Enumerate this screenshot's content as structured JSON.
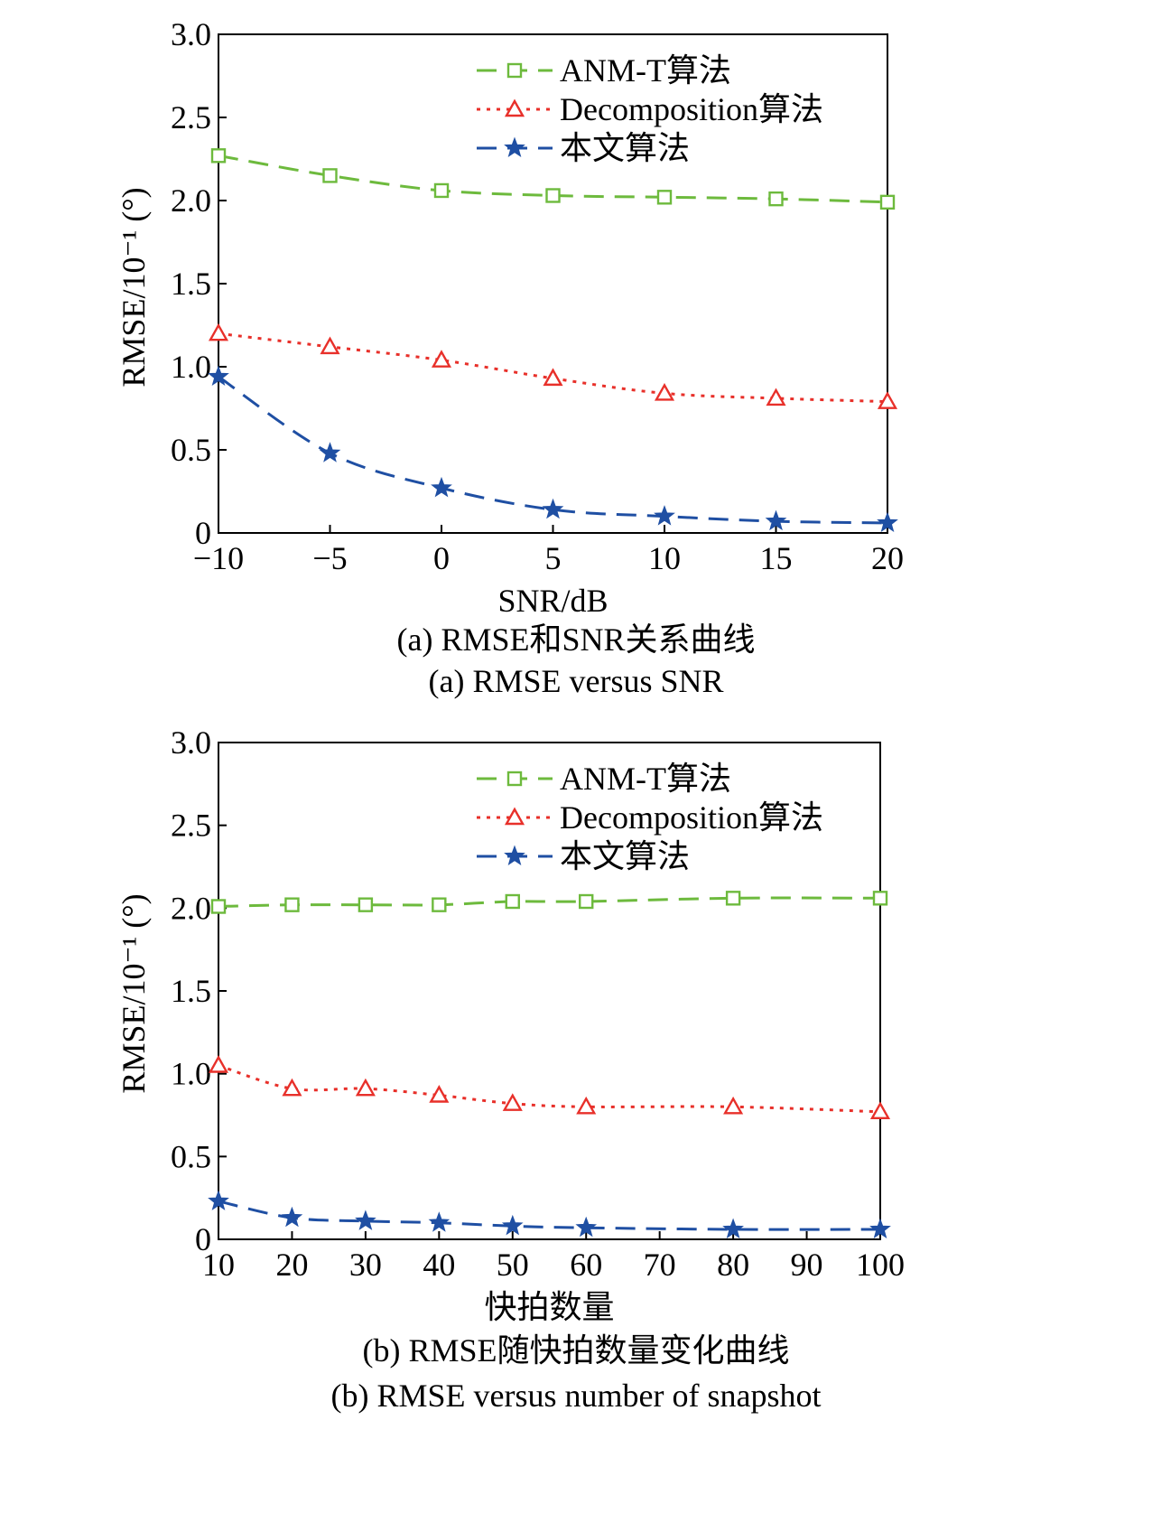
{
  "chart_data": [
    {
      "type": "line",
      "xlabel": "SNR/dB",
      "ylabel": "RMSE/10⁻¹ (°)",
      "caption_cn": "(a) RMSE和SNR关系曲线",
      "caption_en": "(a) RMSE versus SNR",
      "x": [
        -10,
        -5,
        0,
        5,
        10,
        15,
        20
      ],
      "xticks": [
        "−10",
        "−5",
        "0",
        "5",
        "10",
        "15",
        "20"
      ],
      "xlim": [
        -10,
        20
      ],
      "ylim": [
        0,
        3.0
      ],
      "yticks": [
        "0",
        "0.5",
        "1.0",
        "1.5",
        "2.0",
        "2.5",
        "3.0"
      ],
      "legend_position": "top-right",
      "grid": false,
      "series": [
        {
          "name": "ANM-T算法",
          "color": "#6dba3d",
          "marker": "square",
          "style": "dashed",
          "values": [
            2.27,
            2.15,
            2.06,
            2.03,
            2.02,
            2.01,
            1.99
          ]
        },
        {
          "name": "Decomposition算法",
          "color": "#e8302a",
          "marker": "triangle",
          "style": "dotted",
          "values": [
            1.2,
            1.12,
            1.04,
            0.93,
            0.84,
            0.81,
            0.79
          ]
        },
        {
          "name": "本文算法",
          "color": "#1f4fa3",
          "marker": "star",
          "style": "dashed",
          "values": [
            0.94,
            0.48,
            0.27,
            0.14,
            0.1,
            0.07,
            0.06
          ]
        }
      ]
    },
    {
      "type": "line",
      "xlabel": "快拍数量",
      "ylabel": "RMSE/10⁻¹ (°)",
      "caption_cn": "(b) RMSE随快拍数量变化曲线",
      "caption_en": "(b) RMSE versus number of snapshot",
      "x": [
        10,
        20,
        30,
        40,
        50,
        60,
        80,
        100
      ],
      "xticks": [
        "10",
        "20",
        "30",
        "40",
        "50",
        "60",
        "70",
        "80",
        "90",
        "100"
      ],
      "xlim": [
        10,
        100
      ],
      "ylim": [
        0,
        3.0
      ],
      "yticks": [
        "0",
        "0.5",
        "1.0",
        "1.5",
        "2.0",
        "2.5",
        "3.0"
      ],
      "legend_position": "top-right",
      "grid": false,
      "series": [
        {
          "name": "ANM-T算法",
          "color": "#6dba3d",
          "marker": "square",
          "style": "dashed",
          "values": [
            2.01,
            2.02,
            2.02,
            2.02,
            2.04,
            2.04,
            2.06,
            2.06
          ]
        },
        {
          "name": "Decomposition算法",
          "color": "#e8302a",
          "marker": "triangle",
          "style": "dotted",
          "values": [
            1.05,
            0.91,
            0.91,
            0.87,
            0.82,
            0.8,
            0.8,
            0.77
          ]
        },
        {
          "name": "本文算法",
          "color": "#1f4fa3",
          "marker": "star",
          "style": "dashed",
          "values": [
            0.23,
            0.13,
            0.11,
            0.1,
            0.08,
            0.07,
            0.06,
            0.06
          ]
        }
      ]
    }
  ]
}
